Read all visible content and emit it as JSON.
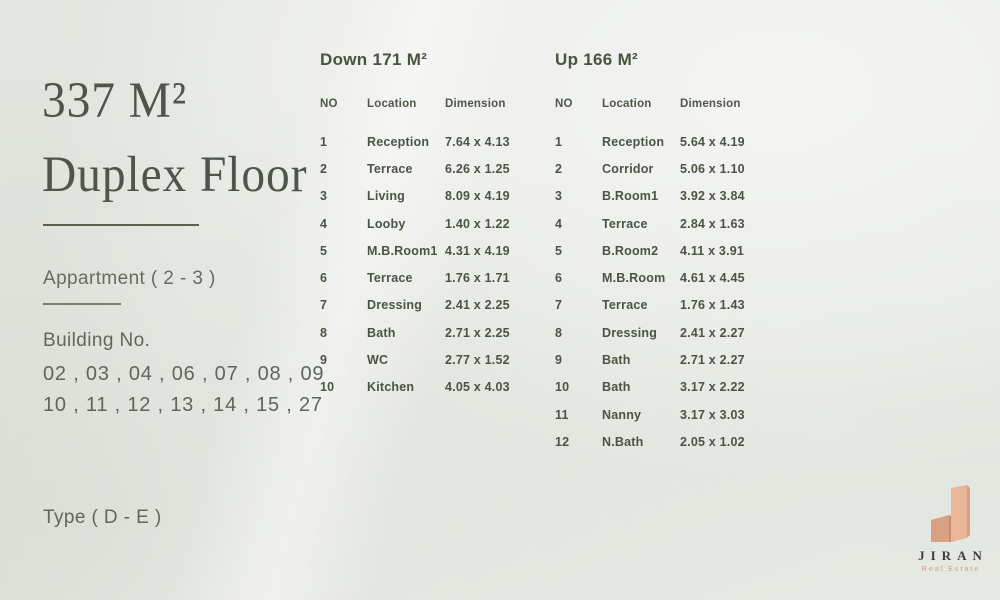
{
  "left_panel": {
    "title_line1": "337 M²",
    "title_line2": "Duplex Floor",
    "apartment": "Appartment ( 2 - 3 )",
    "building_label": "Building No.",
    "building_line1": "02 , 03 , 04 , 06 , 07 , 08 , 09",
    "building_line2": "10 , 11 , 12 , 13 , 14 , 15 , 27",
    "type_label": "Type ( D - E )"
  },
  "tables": [
    {
      "title": "Down 171 M²",
      "columns": [
        "NO",
        "Location",
        "Dimension"
      ],
      "rows": [
        [
          "1",
          "Reception",
          "7.64 x 4.13"
        ],
        [
          "2",
          "Terrace",
          "6.26 x 1.25"
        ],
        [
          "3",
          "Living",
          "8.09 x 4.19"
        ],
        [
          "4",
          "Looby",
          "1.40 x 1.22"
        ],
        [
          "5",
          "M.B.Room1",
          "4.31 x 4.19"
        ],
        [
          "6",
          "Terrace",
          "1.76 x 1.71"
        ],
        [
          "7",
          "Dressing",
          "2.41 x 2.25"
        ],
        [
          "8",
          "Bath",
          "2.71 x 2.25"
        ],
        [
          "9",
          "WC",
          "2.77 x 1.52"
        ],
        [
          "10",
          "Kitchen",
          "4.05 x 4.03"
        ]
      ]
    },
    {
      "title": "Up 166 M²",
      "columns": [
        "NO",
        "Location",
        "Dimension"
      ],
      "rows": [
        [
          "1",
          "Reception",
          "5.64 x 4.19"
        ],
        [
          "2",
          "Corridor",
          "5.06 x 1.10"
        ],
        [
          "3",
          "B.Room1",
          "3.92 x 3.84"
        ],
        [
          "4",
          "Terrace",
          "2.84 x 1.63"
        ],
        [
          "5",
          "B.Room2",
          "4.11 x 3.91"
        ],
        [
          "6",
          "M.B.Room",
          "4.61 x 4.45"
        ],
        [
          "7",
          "Terrace",
          "1.76 x 1.43"
        ],
        [
          "8",
          "Dressing",
          "2.41 x 2.27"
        ],
        [
          "9",
          "Bath",
          "2.71 x 2.27"
        ],
        [
          "10",
          "Bath",
          "3.17 x 2.22"
        ],
        [
          "11",
          "Nanny",
          "3.17 x 3.03"
        ],
        [
          "12",
          "N.Bath",
          "2.05 x 1.02"
        ]
      ]
    }
  ],
  "logo": {
    "brand": "JIRAN",
    "tagline": "Real Estate"
  },
  "colors": {
    "background": "#e9ebe6",
    "text_olive": "#4b5444",
    "title_serif": "#4d564a",
    "accent_peach": "#e9b698",
    "accent_peach_dark": "#d9a184",
    "brand_text": "#3f3e3b"
  }
}
